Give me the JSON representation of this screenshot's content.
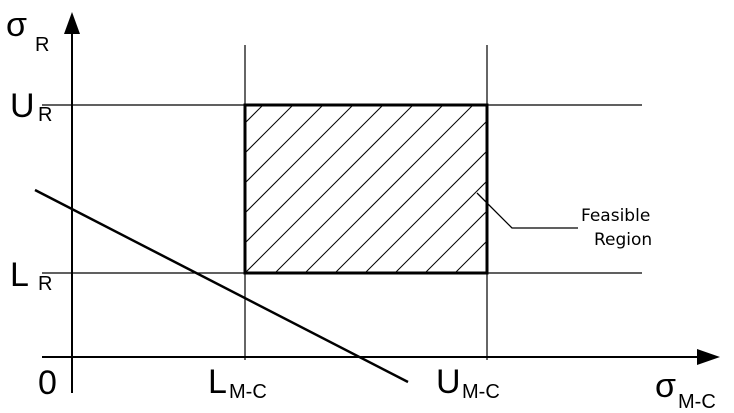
{
  "diagram": {
    "y_axis": {
      "symbol": "σ",
      "subscript": "R"
    },
    "x_axis": {
      "symbol": "σ",
      "subscript": "M-C"
    },
    "origin_label": "0",
    "upper_r": {
      "main": "U",
      "subscript": "R"
    },
    "lower_r": {
      "main": "L",
      "subscript": "R"
    },
    "lower_mc": {
      "main": "L",
      "subscript": "M-C"
    },
    "upper_mc": {
      "main": "U",
      "subscript": "M-C"
    },
    "region_label": {
      "line1": "Feasible",
      "line2": "Region"
    },
    "colors": {
      "ink": "#000000",
      "background": "#ffffff"
    }
  }
}
